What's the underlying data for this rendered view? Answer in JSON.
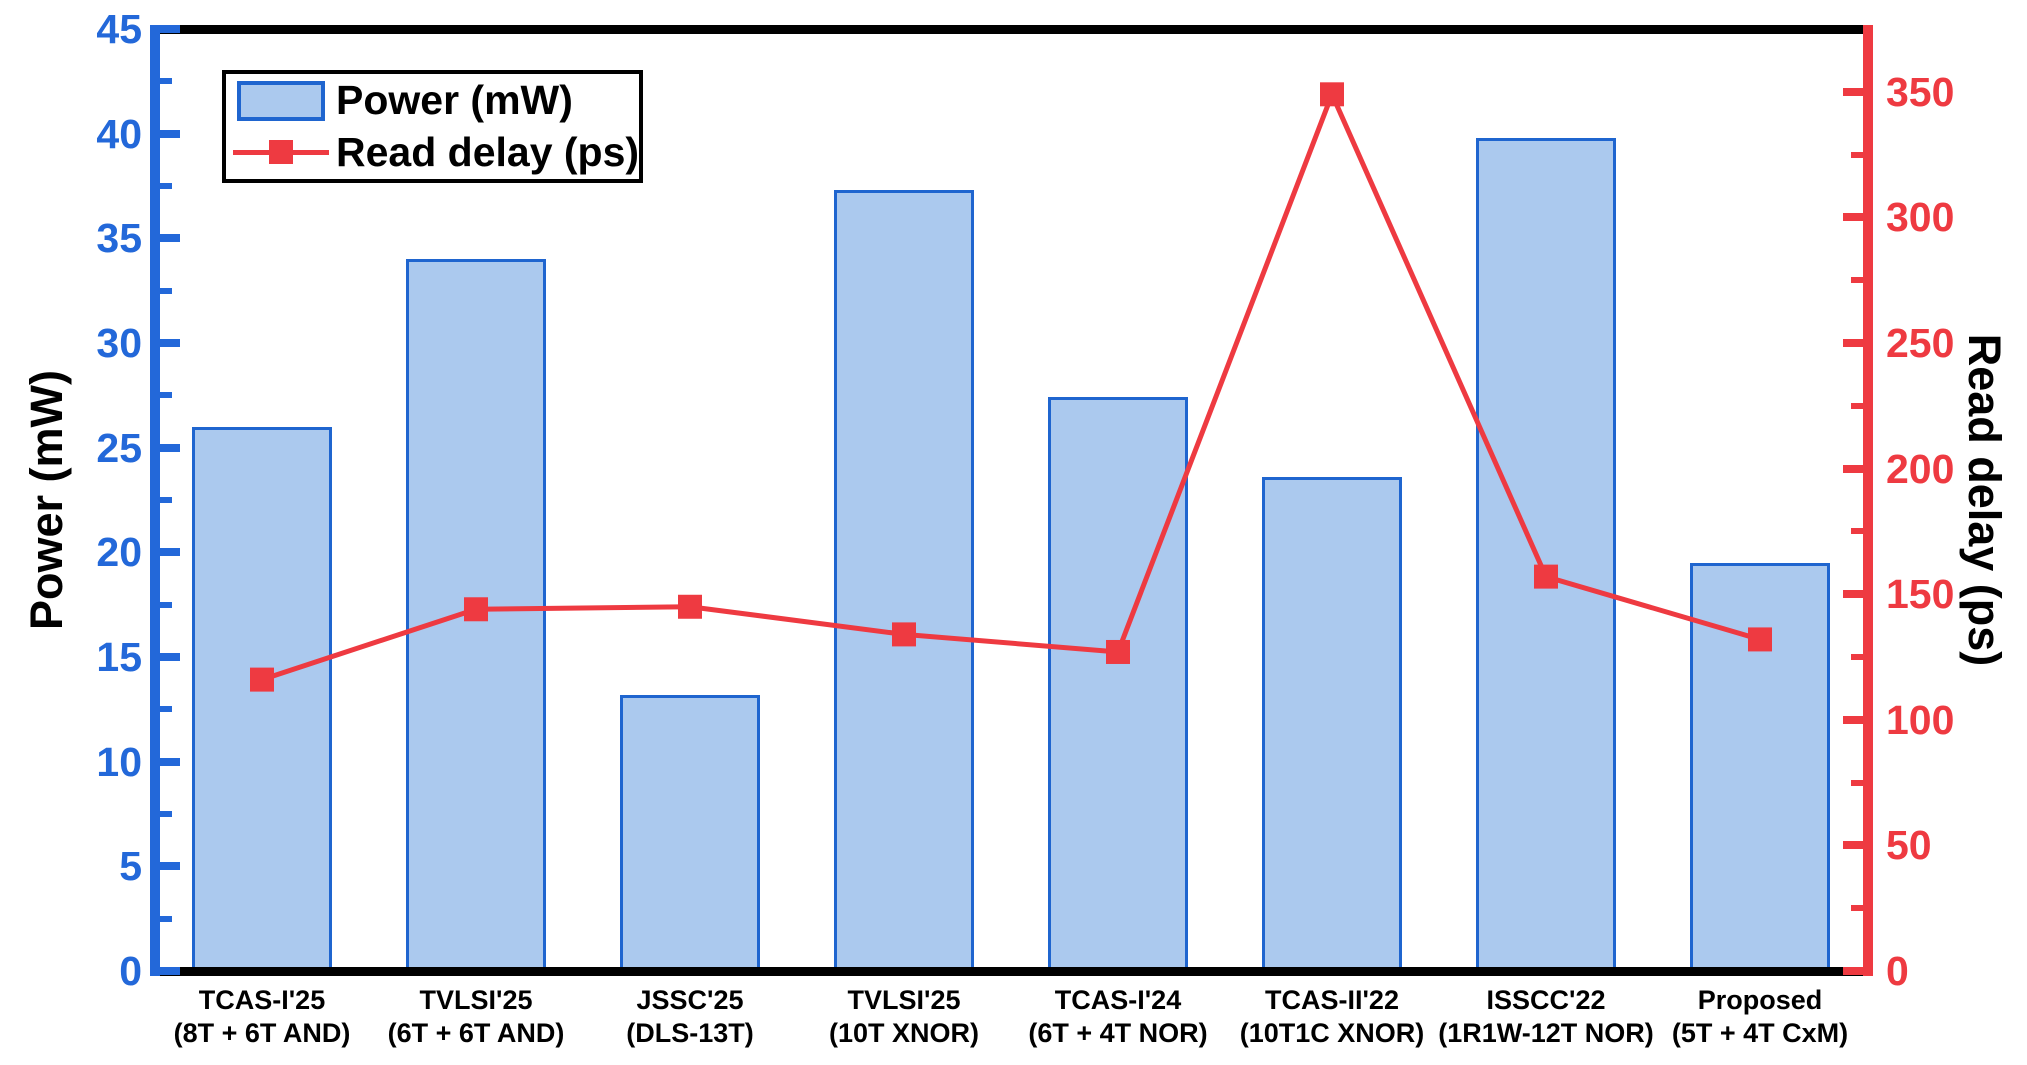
{
  "chart_data": {
    "type": "bar+line",
    "title": "",
    "background": "#ffffff",
    "frame_color": "#000000",
    "categories": [
      {
        "line1": "TCAS-I'25",
        "line2": "(8T + 6T AND)"
      },
      {
        "line1": "TVLSI'25",
        "line2": "(6T + 6T AND)"
      },
      {
        "line1": "JSSC'25",
        "line2": "(DLS-13T)"
      },
      {
        "line1": "TVLSI'25",
        "line2": "(10T XNOR)"
      },
      {
        "line1": "TCAS-I'24",
        "line2": "(6T + 4T NOR)"
      },
      {
        "line1": "TCAS-II'22",
        "line2": "(10T1C XNOR)"
      },
      {
        "line1": "ISSCC'22",
        "line2": "(1R1W-12T NOR)"
      },
      {
        "line1": "Proposed",
        "line2": "(5T + 4T CxM)"
      }
    ],
    "series": [
      {
        "name": "Power (mW)",
        "type": "bar",
        "axis": "left",
        "values": [
          26.0,
          34.0,
          13.2,
          37.3,
          27.4,
          23.6,
          39.8,
          19.5
        ],
        "fill": "#abc9ee",
        "stroke": "#1f65cf"
      },
      {
        "name": "Read delay (ps)",
        "type": "line",
        "axis": "right",
        "values": [
          116,
          144,
          145,
          134,
          127,
          349,
          157,
          132
        ],
        "stroke": "#ee3a41",
        "marker": "square"
      }
    ],
    "left_axis": {
      "label": "Power (mW)",
      "min": 0,
      "max": 45,
      "major_ticks": [
        0,
        5,
        10,
        15,
        20,
        25,
        30,
        35,
        40,
        45
      ],
      "minor_step": 2.5,
      "color": "#2368d9"
    },
    "right_axis": {
      "label": "Read delay (ps)",
      "min": 0,
      "max": 375,
      "major_ticks": [
        0,
        50,
        100,
        150,
        200,
        250,
        300,
        350
      ],
      "minor_step": 25,
      "color": "#ee3a41"
    },
    "legend": {
      "position": "top-left",
      "entries": [
        {
          "label": "Power (mW)",
          "swatch": "bar"
        },
        {
          "label": "Read delay (ps)",
          "swatch": "line-marker"
        }
      ]
    },
    "grid": false
  }
}
